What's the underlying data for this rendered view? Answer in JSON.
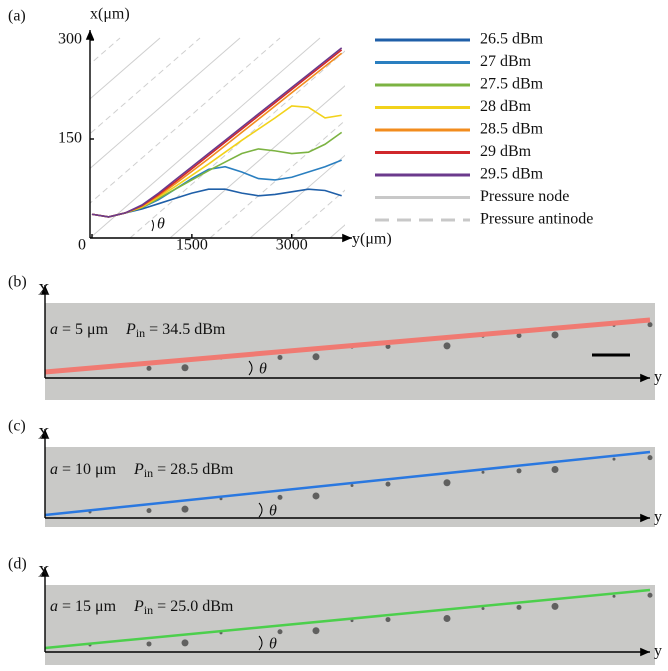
{
  "chart_data": {
    "type": "line",
    "panel_label": "(a)",
    "x_label": "y(μm)",
    "y_label": "x(μm)",
    "angle_label": "θ",
    "x": [
      0,
      250,
      500,
      750,
      1000,
      1250,
      1500,
      1750,
      2000,
      2250,
      2500,
      2750,
      3000,
      3250,
      3500,
      3750
    ],
    "xlim": [
      0,
      3800
    ],
    "ylim": [
      0,
      300
    ],
    "xticks": [
      0,
      1500,
      3000
    ],
    "yticks": [
      150,
      300
    ],
    "series": [
      {
        "name": "26.5 dBm",
        "color": "#1f5fa8",
        "values": [
          36,
          32,
          38,
          44,
          52,
          60,
          68,
          74,
          74,
          68,
          64,
          66,
          70,
          74,
          72,
          64
        ]
      },
      {
        "name": "27 dBm",
        "color": "#2a7fc0",
        "values": [
          36,
          32,
          38,
          46,
          58,
          74,
          90,
          104,
          108,
          100,
          90,
          88,
          92,
          100,
          108,
          118
        ]
      },
      {
        "name": "27.5 dBm",
        "color": "#7cb342",
        "values": [
          36,
          32,
          38,
          46,
          60,
          74,
          88,
          102,
          115,
          128,
          135,
          132,
          128,
          130,
          142,
          160
        ]
      },
      {
        "name": "28 dBm",
        "color": "#f2d21b",
        "values": [
          36,
          32,
          38,
          47,
          62,
          78,
          95,
          112,
          130,
          148,
          165,
          182,
          200,
          198,
          182,
          186
        ]
      },
      {
        "name": "28.5 dBm",
        "color": "#f28c1e",
        "values": [
          36,
          32,
          38,
          48,
          64,
          82,
          101,
          120,
          140,
          160,
          180,
          200,
          220,
          240,
          260,
          280
        ]
      },
      {
        "name": "29 dBm",
        "color": "#d0282b",
        "values": [
          36,
          32,
          38,
          49,
          66,
          85,
          105,
          125,
          145,
          165,
          185,
          205,
          225,
          245,
          265,
          285
        ]
      },
      {
        "name": "29.5 dBm",
        "color": "#6b3a8c",
        "values": [
          36,
          32,
          38,
          50,
          68,
          88,
          108,
          128,
          148,
          168,
          188,
          208,
          228,
          248,
          268,
          288
        ]
      }
    ],
    "legend_extra": [
      {
        "name": "Pressure node",
        "dashed": false
      },
      {
        "name": "Pressure antinode",
        "dashed": true
      }
    ]
  },
  "panels": [
    {
      "label": "(b)",
      "x_axis": "y",
      "y_axis": "X",
      "angle": "θ",
      "line_color": "#f07a72",
      "a_symbol": "a",
      "a_text": " = 5 μm",
      "p_symbol": "P",
      "p_sub": "in",
      "p_text": " = 34.5 dBm"
    },
    {
      "label": "(c)",
      "x_axis": "y",
      "y_axis": "X",
      "angle": "θ",
      "line_color": "#2a78e0",
      "a_symbol": "a",
      "a_text": " = 10 μm",
      "p_symbol": "P",
      "p_sub": "in",
      "p_text": " = 28.5 dBm"
    },
    {
      "label": "(d)",
      "x_axis": "y",
      "y_axis": "X",
      "angle": "θ",
      "line_color": "#4ccf4c",
      "a_symbol": "a",
      "a_text": " = 15 μm",
      "p_symbol": "P",
      "p_sub": "in",
      "p_text": " = 25.0 dBm"
    }
  ]
}
